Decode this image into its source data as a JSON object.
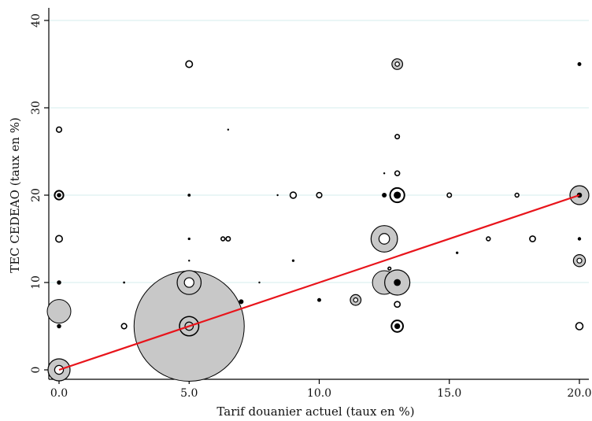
{
  "chart_data": {
    "type": "scatter",
    "xlabel": "Tarif douanier actuel (taux en %)",
    "ylabel": "TEC CEDEAO (taux en %)",
    "xlim": [
      0,
      20
    ],
    "ylim": [
      0,
      40
    ],
    "x_ticks": [
      {
        "value": 0,
        "label": "0.0"
      },
      {
        "value": 5,
        "label": "5.0"
      },
      {
        "value": 10,
        "label": "10.0"
      },
      {
        "value": 15,
        "label": "15.0"
      },
      {
        "value": 20,
        "label": "20.0"
      }
    ],
    "y_ticks": [
      {
        "value": 0,
        "label": "0"
      },
      {
        "value": 10,
        "label": "10"
      },
      {
        "value": 20,
        "label": "20"
      },
      {
        "value": 30,
        "label": "30"
      },
      {
        "value": 40,
        "label": "40"
      }
    ],
    "grid": "horizontal",
    "marker_size_note": "markers scaled by weight (relative size 1-10)",
    "points": [
      {
        "x": 0,
        "y": 0,
        "size": 3.5,
        "style": "gray-ring"
      },
      {
        "x": 0,
        "y": 5,
        "size": 1,
        "style": "black"
      },
      {
        "x": 0,
        "y": 6.7,
        "size": 3,
        "style": "gray"
      },
      {
        "x": 0,
        "y": 10,
        "size": 1,
        "style": "black"
      },
      {
        "x": 0,
        "y": 15,
        "size": 1.4,
        "style": "ring"
      },
      {
        "x": 0,
        "y": 20,
        "size": 1.6,
        "style": "ring-black"
      },
      {
        "x": 0,
        "y": 27.5,
        "size": 1.1,
        "style": "ring"
      },
      {
        "x": 2.5,
        "y": 5,
        "size": 1.1,
        "style": "ring"
      },
      {
        "x": 2.5,
        "y": 10,
        "size": 0.5,
        "style": "black"
      },
      {
        "x": 3.3,
        "y": 5,
        "size": 0.5,
        "style": "black"
      },
      {
        "x": 5,
        "y": 0,
        "size": 1.9,
        "style": "ring-black"
      },
      {
        "x": 5,
        "y": 5,
        "size": 14,
        "style": "gray"
      },
      {
        "x": 5,
        "y": 5,
        "size": 3.5,
        "style": "ring-gray"
      },
      {
        "x": 5,
        "y": 10,
        "size": 3.8,
        "style": "gray-ring"
      },
      {
        "x": 5,
        "y": 12.5,
        "size": 0.4,
        "style": "black"
      },
      {
        "x": 5,
        "y": 15,
        "size": 0.6,
        "style": "black"
      },
      {
        "x": 5,
        "y": 20,
        "size": 0.7,
        "style": "black"
      },
      {
        "x": 5,
        "y": 35,
        "size": 1.4,
        "style": "ring"
      },
      {
        "x": 6.3,
        "y": 15,
        "size": 0.8,
        "style": "ring"
      },
      {
        "x": 6.5,
        "y": 15,
        "size": 0.9,
        "style": "ring"
      },
      {
        "x": 6.5,
        "y": 27.5,
        "size": 0.4,
        "style": "black"
      },
      {
        "x": 7,
        "y": 7.8,
        "size": 1.1,
        "style": "black"
      },
      {
        "x": 7.7,
        "y": 10,
        "size": 0.4,
        "style": "black"
      },
      {
        "x": 8.4,
        "y": 20,
        "size": 0.4,
        "style": "black"
      },
      {
        "x": 9,
        "y": 12.5,
        "size": 0.6,
        "style": "black"
      },
      {
        "x": 9,
        "y": 20,
        "size": 1.3,
        "style": "ring"
      },
      {
        "x": 10,
        "y": 8,
        "size": 0.9,
        "style": "black"
      },
      {
        "x": 10,
        "y": 20,
        "size": 1.1,
        "style": "ring"
      },
      {
        "x": 11.4,
        "y": 8,
        "size": 1.7,
        "style": "gray-ring"
      },
      {
        "x": 12.5,
        "y": 10,
        "size": 3,
        "style": "gray"
      },
      {
        "x": 12.5,
        "y": 15,
        "size": 4.2,
        "style": "gray-ring"
      },
      {
        "x": 12.5,
        "y": 20,
        "size": 1.1,
        "style": "black"
      },
      {
        "x": 12.5,
        "y": 22.5,
        "size": 0.4,
        "style": "black"
      },
      {
        "x": 12.7,
        "y": 11.6,
        "size": 0.6,
        "style": "ring"
      },
      {
        "x": 13,
        "y": 5,
        "size": 2.1,
        "style": "ring-black"
      },
      {
        "x": 13,
        "y": 7.5,
        "size": 1.2,
        "style": "ring"
      },
      {
        "x": 13,
        "y": 10,
        "size": 4,
        "style": "gray-black"
      },
      {
        "x": 13,
        "y": 20,
        "size": 2.6,
        "style": "ring-black"
      },
      {
        "x": 13,
        "y": 22.5,
        "size": 1,
        "style": "ring"
      },
      {
        "x": 13,
        "y": 26.7,
        "size": 0.9,
        "style": "ring"
      },
      {
        "x": 13,
        "y": 35,
        "size": 1.7,
        "style": "gray-ring"
      },
      {
        "x": 15,
        "y": 20,
        "size": 0.9,
        "style": "ring"
      },
      {
        "x": 15.3,
        "y": 13.4,
        "size": 0.6,
        "style": "black"
      },
      {
        "x": 16.5,
        "y": 15,
        "size": 0.8,
        "style": "ring"
      },
      {
        "x": 17.6,
        "y": 20,
        "size": 0.8,
        "style": "ring"
      },
      {
        "x": 18.2,
        "y": 15,
        "size": 1.2,
        "style": "ring"
      },
      {
        "x": 20,
        "y": 5,
        "size": 1.5,
        "style": "ring"
      },
      {
        "x": 20,
        "y": 12.5,
        "size": 1.9,
        "style": "gray-ring"
      },
      {
        "x": 20,
        "y": 15,
        "size": 0.8,
        "style": "black"
      },
      {
        "x": 20,
        "y": 20,
        "size": 3,
        "style": "gray-black"
      },
      {
        "x": 20,
        "y": 35,
        "size": 0.9,
        "style": "black"
      }
    ],
    "fit_line": {
      "color": "#e8141b",
      "x": [
        0,
        20
      ],
      "y": [
        0,
        20
      ]
    }
  }
}
